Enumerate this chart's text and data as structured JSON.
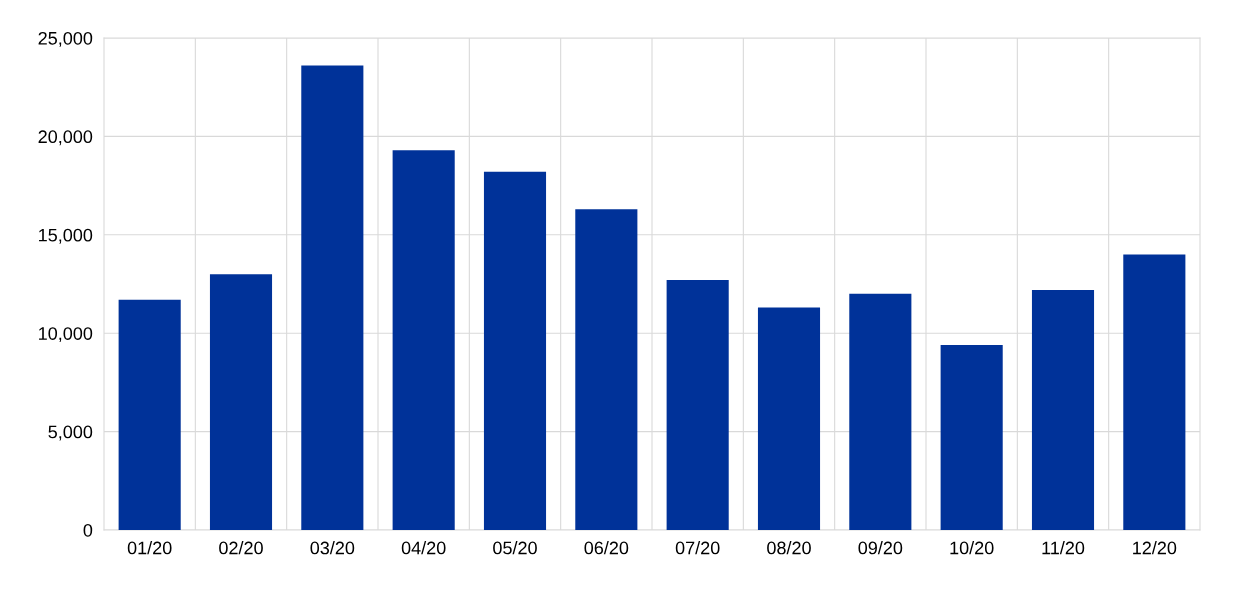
{
  "chart_data": {
    "type": "bar",
    "categories": [
      "01/20",
      "02/20",
      "03/20",
      "04/20",
      "05/20",
      "06/20",
      "07/20",
      "08/20",
      "09/20",
      "10/20",
      "11/20",
      "12/20"
    ],
    "values": [
      11700,
      13000,
      23600,
      19300,
      18200,
      16300,
      12700,
      11300,
      12000,
      9400,
      12200,
      14000
    ],
    "color": "#003299",
    "ylim": [
      0,
      25000
    ],
    "yticks": [
      {
        "value": 0,
        "label": "0"
      },
      {
        "value": 5000,
        "label": "5,000"
      },
      {
        "value": 10000,
        "label": "10,000"
      },
      {
        "value": 15000,
        "label": "15,000"
      },
      {
        "value": 20000,
        "label": "20,000"
      },
      {
        "value": 25000,
        "label": "25,000"
      }
    ],
    "grid": true
  }
}
